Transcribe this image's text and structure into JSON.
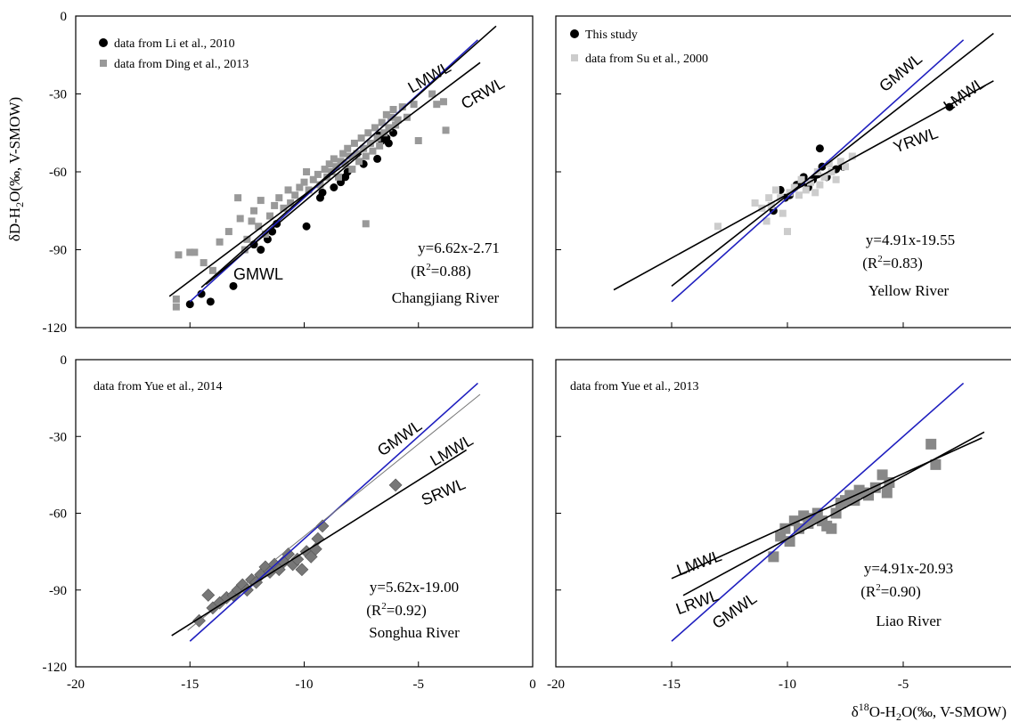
{
  "figure": {
    "ylabel": "δD-H2O(‰, V-SMOW)",
    "xlabel": "δ18O-H2O(‰, V-SMOW)",
    "x_ticks": [
      "-20",
      "-15",
      "-10",
      "-5",
      "0"
    ],
    "y_ticks": [
      "0",
      "-30",
      "-60",
      "-90",
      "-120"
    ]
  },
  "chart_data": [
    {
      "type": "scatter",
      "river": "Changjiang River",
      "xlim": [
        -20,
        0
      ],
      "ylim": [
        -120,
        0
      ],
      "legend_position": "top-left",
      "equation": "y=6.62x-2.71",
      "r2": "(R2=0.88)",
      "series": [
        {
          "name": "data from Li et al., 2010",
          "marker": "circle",
          "color": "#000000",
          "points": [
            [
              -15,
              -111
            ],
            [
              -14.5,
              -107
            ],
            [
              -14.1,
              -110
            ],
            [
              -13.1,
              -104
            ],
            [
              -12.2,
              -88
            ],
            [
              -11.9,
              -90
            ],
            [
              -11.6,
              -86
            ],
            [
              -11.4,
              -83
            ],
            [
              -11.2,
              -80
            ],
            [
              -9.9,
              -81
            ],
            [
              -9.3,
              -70
            ],
            [
              -9.2,
              -68
            ],
            [
              -8.7,
              -66
            ],
            [
              -8.4,
              -64
            ],
            [
              -8.2,
              -62
            ],
            [
              -8.1,
              -60
            ],
            [
              -7.4,
              -57
            ],
            [
              -6.8,
              -55
            ],
            [
              -6.7,
              -46
            ],
            [
              -6.6,
              -48
            ],
            [
              -6.4,
              -47
            ],
            [
              -6.3,
              -49
            ],
            [
              -6.1,
              -45
            ]
          ]
        },
        {
          "name": "data from Ding et al., 2013",
          "marker": "square",
          "color": "#999999",
          "points": [
            [
              -15.6,
              -109
            ],
            [
              -15.6,
              -112
            ],
            [
              -15.5,
              -92
            ],
            [
              -15,
              -91
            ],
            [
              -14.8,
              -91
            ],
            [
              -14.4,
              -95
            ],
            [
              -14,
              -98
            ],
            [
              -13.7,
              -87
            ],
            [
              -13.3,
              -83
            ],
            [
              -12.9,
              -70
            ],
            [
              -12.8,
              -78
            ],
            [
              -12.6,
              -90
            ],
            [
              -12.5,
              -86
            ],
            [
              -12.3,
              -79
            ],
            [
              -12.2,
              -75
            ],
            [
              -12,
              -81
            ],
            [
              -11.9,
              -71
            ],
            [
              -11.7,
              -84
            ],
            [
              -11.5,
              -77
            ],
            [
              -11.3,
              -73
            ],
            [
              -11.1,
              -70
            ],
            [
              -10.9,
              -74
            ],
            [
              -10.7,
              -67
            ],
            [
              -10.6,
              -72
            ],
            [
              -10.4,
              -69
            ],
            [
              -10.2,
              -66
            ],
            [
              -10,
              -64
            ],
            [
              -9.9,
              -60
            ],
            [
              -9.8,
              -67
            ],
            [
              -9.6,
              -63
            ],
            [
              -9.4,
              -61
            ],
            [
              -9.3,
              -65
            ],
            [
              -9.1,
              -59
            ],
            [
              -9,
              -62
            ],
            [
              -8.9,
              -57
            ],
            [
              -8.8,
              -60
            ],
            [
              -8.7,
              -55
            ],
            [
              -8.6,
              -58
            ],
            [
              -8.5,
              -62
            ],
            [
              -8.4,
              -56
            ],
            [
              -8.3,
              -53
            ],
            [
              -8.2,
              -57
            ],
            [
              -8.1,
              -51
            ],
            [
              -8,
              -54
            ],
            [
              -7.9,
              -59
            ],
            [
              -7.8,
              -49
            ],
            [
              -7.7,
              -53
            ],
            [
              -7.6,
              -56
            ],
            [
              -7.5,
              -47
            ],
            [
              -7.4,
              -51
            ],
            [
              -7.3,
              -54
            ],
            [
              -7.2,
              -45
            ],
            [
              -7.1,
              -49
            ],
            [
              -7,
              -52
            ],
            [
              -6.9,
              -43
            ],
            [
              -6.8,
              -47
            ],
            [
              -6.7,
              -50
            ],
            [
              -6.6,
              -41
            ],
            [
              -6.5,
              -45
            ],
            [
              -6.4,
              -38
            ],
            [
              -6.3,
              -43
            ],
            [
              -6.2,
              -39
            ],
            [
              -6.1,
              -36
            ],
            [
              -6,
              -42
            ],
            [
              -5.9,
              -40
            ],
            [
              -5.7,
              -35
            ],
            [
              -5.5,
              -39
            ],
            [
              -5.2,
              -34
            ],
            [
              -5,
              -48
            ],
            [
              -4.4,
              -30
            ],
            [
              -4.2,
              -34
            ],
            [
              -3.8,
              -44
            ],
            [
              -3.9,
              -33
            ],
            [
              -7.3,
              -80
            ]
          ]
        }
      ],
      "lines": [
        {
          "label": "GMWL",
          "color": "#1f1fbf",
          "slope": 8,
          "intercept": 10,
          "x_range": [
            -15,
            -2.4
          ]
        },
        {
          "label": "LMWL",
          "color": "#000000",
          "slope": 7.8,
          "intercept": 8.6,
          "x_range": [
            -14.5,
            -1.6
          ]
        },
        {
          "label": "CRWL",
          "color": "#000000",
          "slope": 6.62,
          "intercept": -2.71,
          "x_range": [
            -15.9,
            -2.3
          ]
        },
        {
          "label": "",
          "color": "#000000",
          "slope": 7.4,
          "intercept": 2.5,
          "x_range": [
            -14.3,
            -7.5
          ]
        }
      ]
    },
    {
      "type": "scatter",
      "river": "Yellow River",
      "xlim": [
        -20,
        0
      ],
      "ylim": [
        -120,
        0
      ],
      "legend_position": "top-left",
      "equation": "y=4.91x-19.55",
      "r2": "(R2=0.83)",
      "series": [
        {
          "name": "This study",
          "marker": "circle",
          "color": "#000000",
          "points": [
            [
              -10.6,
              -75
            ],
            [
              -10.3,
              -67
            ],
            [
              -10.1,
              -70
            ],
            [
              -9.9,
              -69
            ],
            [
              -9.6,
              -65
            ],
            [
              -9.4,
              -64
            ],
            [
              -9.3,
              -62
            ],
            [
              -9.1,
              -66
            ],
            [
              -8.9,
              -63
            ],
            [
              -8.7,
              -61
            ],
            [
              -8.6,
              -51
            ],
            [
              -8.5,
              -58
            ],
            [
              -8.3,
              -62
            ],
            [
              -7.9,
              -59
            ],
            [
              -7.6,
              -58
            ],
            [
              -3,
              -35
            ]
          ]
        },
        {
          "name": "data from Su et al., 2000",
          "marker": "square",
          "color": "#cccccc",
          "points": [
            [
              -13,
              -81
            ],
            [
              -11.4,
              -72
            ],
            [
              -11.1,
              -74
            ],
            [
              -10.9,
              -79
            ],
            [
              -10.8,
              -70
            ],
            [
              -10.7,
              -73
            ],
            [
              -10.5,
              -67
            ],
            [
              -10.3,
              -70
            ],
            [
              -10.2,
              -76
            ],
            [
              -10,
              -83
            ],
            [
              -9.9,
              -68
            ],
            [
              -9.7,
              -66
            ],
            [
              -9.5,
              -69
            ],
            [
              -9.4,
              -63
            ],
            [
              -9.2,
              -67
            ],
            [
              -9,
              -64
            ],
            [
              -8.8,
              -68
            ],
            [
              -8.7,
              -60
            ],
            [
              -8.6,
              -65
            ],
            [
              -8.4,
              -62
            ],
            [
              -8.2,
              -57
            ],
            [
              -8.1,
              -60
            ],
            [
              -7.9,
              -63
            ],
            [
              -7.7,
              -56
            ],
            [
              -7.5,
              -58
            ],
            [
              -7.2,
              -54
            ]
          ]
        }
      ],
      "lines": [
        {
          "label": "GMWL",
          "color": "#1f1fbf",
          "slope": 8,
          "intercept": 10,
          "x_range": [
            -15,
            -2.4
          ]
        },
        {
          "label": "LMWL",
          "color": "#000000",
          "slope": 7,
          "intercept": 1,
          "x_range": [
            -15,
            -1.1
          ]
        },
        {
          "label": "YRWL",
          "color": "#000000",
          "slope": 4.91,
          "intercept": -19.55,
          "x_range": [
            -17.5,
            -1.1
          ]
        }
      ]
    },
    {
      "type": "scatter",
      "river": "Songhua River",
      "xlim": [
        -20,
        0
      ],
      "ylim": [
        -120,
        0
      ],
      "legend_position": "top-left",
      "note": "data from Yue et al., 2014",
      "equation": "y=5.62x-19.00",
      "r2": "(R2=0.92)",
      "series": [
        {
          "name": "data from Yue et al., 2014",
          "marker": "diamond",
          "color": "#777777",
          "points": [
            [
              -14.6,
              -102
            ],
            [
              -14.2,
              -92
            ],
            [
              -14,
              -97
            ],
            [
              -13.7,
              -95
            ],
            [
              -13.4,
              -93
            ],
            [
              -13.1,
              -92
            ],
            [
              -12.9,
              -90
            ],
            [
              -12.7,
              -88
            ],
            [
              -12.5,
              -90
            ],
            [
              -12.3,
              -86
            ],
            [
              -12.1,
              -87
            ],
            [
              -11.9,
              -84
            ],
            [
              -11.7,
              -81
            ],
            [
              -11.5,
              -83
            ],
            [
              -11.3,
              -80
            ],
            [
              -11.1,
              -82
            ],
            [
              -10.9,
              -79
            ],
            [
              -10.7,
              -76
            ],
            [
              -10.5,
              -80
            ],
            [
              -10.3,
              -78
            ],
            [
              -10.1,
              -82
            ],
            [
              -9.9,
              -75
            ],
            [
              -9.7,
              -77
            ],
            [
              -9.5,
              -74
            ],
            [
              -9.4,
              -70
            ],
            [
              -9.2,
              -65
            ],
            [
              -6,
              -49
            ]
          ]
        }
      ],
      "lines": [
        {
          "label": "GMWL",
          "color": "#1f1fbf",
          "slope": 8,
          "intercept": 10,
          "x_range": [
            -15,
            -2.4
          ]
        },
        {
          "label": "LMWL",
          "color": "#777777",
          "slope": 7.2,
          "intercept": 3,
          "x_range": [
            -15.1,
            -2.3
          ]
        },
        {
          "label": "SRWL",
          "color": "#000000",
          "slope": 5.62,
          "intercept": -19,
          "x_range": [
            -15.8,
            -2.9
          ]
        }
      ]
    },
    {
      "type": "scatter",
      "river": "Liao River",
      "xlim": [
        -20,
        0
      ],
      "ylim": [
        -120,
        0
      ],
      "legend_position": "top-left",
      "note": "data from Yue et al., 2013",
      "equation": "y=4.91x-20.93",
      "r2": "(R2=0.90)",
      "series": [
        {
          "name": "data from Yue et al., 2013",
          "marker": "square",
          "color": "#888888",
          "points": [
            [
              -10.6,
              -77
            ],
            [
              -10.3,
              -69
            ],
            [
              -10.1,
              -66
            ],
            [
              -9.9,
              -71
            ],
            [
              -9.7,
              -63
            ],
            [
              -9.5,
              -66
            ],
            [
              -9.3,
              -61
            ],
            [
              -9.1,
              -64
            ],
            [
              -8.9,
              -62
            ],
            [
              -8.7,
              -60
            ],
            [
              -8.5,
              -63
            ],
            [
              -8.3,
              -65
            ],
            [
              -8.1,
              -66
            ],
            [
              -7.9,
              -60
            ],
            [
              -7.7,
              -56
            ],
            [
              -7.5,
              -55
            ],
            [
              -7.3,
              -53
            ],
            [
              -7.1,
              -55
            ],
            [
              -6.9,
              -51
            ],
            [
              -6.7,
              -52
            ],
            [
              -6.5,
              -53
            ],
            [
              -6.2,
              -50
            ],
            [
              -5.9,
              -45
            ],
            [
              -5.7,
              -52
            ],
            [
              -5.6,
              -48
            ],
            [
              -3.8,
              -33
            ],
            [
              -3.6,
              -41
            ]
          ]
        }
      ],
      "lines": [
        {
          "label": "GMWL",
          "color": "#1f1fbf",
          "slope": 8,
          "intercept": 10,
          "x_range": [
            -15,
            -2.4
          ]
        },
        {
          "label": "LMWL",
          "color": "#000000",
          "slope": 4.1,
          "intercept": -24,
          "x_range": [
            -15,
            -1.6
          ]
        },
        {
          "label": "LRWL",
          "color": "#000000",
          "slope": 4.91,
          "intercept": -20.93,
          "x_range": [
            -14.5,
            -1.5
          ]
        }
      ]
    }
  ]
}
